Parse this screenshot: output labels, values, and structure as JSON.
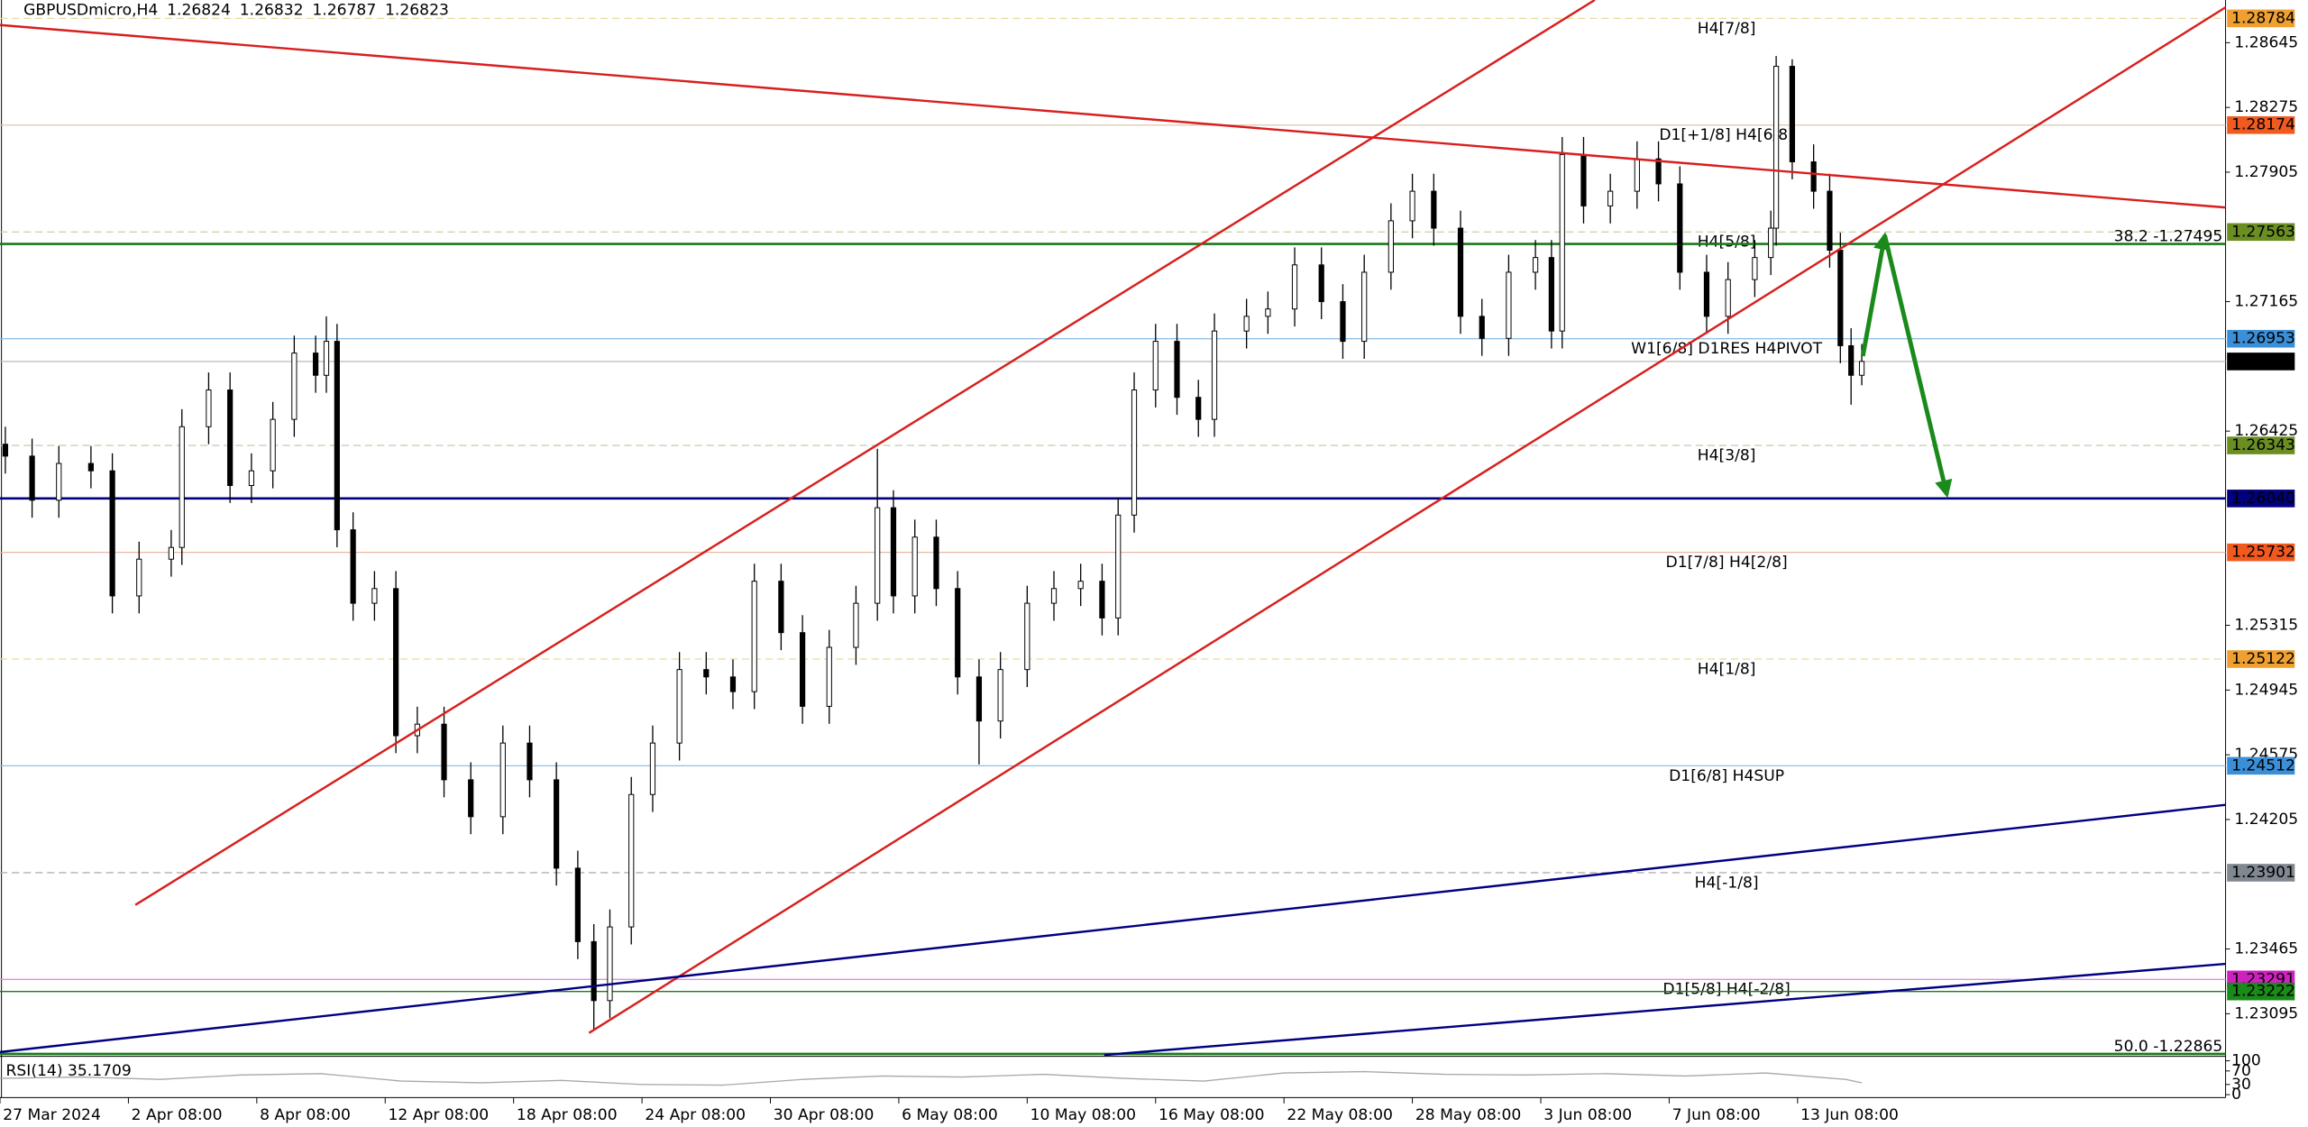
{
  "chart_data": {
    "type": "candlestick",
    "title": "GBPUSDmicro,H4",
    "ohlc_header": [
      1.26824,
      1.26832,
      1.26787,
      1.26823
    ],
    "xlim": [
      0,
      416
    ],
    "ylim": [
      1.22868,
      1.28889
    ],
    "yticks": [
      1.28645,
      1.28275,
      1.27905,
      1.27165,
      1.26425,
      1.25315,
      1.24945,
      1.24575,
      1.24205,
      1.23465,
      1.23095
    ],
    "xticks": [
      {
        "value": 0,
        "label": "27 Mar 2024"
      },
      {
        "value": 24,
        "label": "2 Apr 08:00"
      },
      {
        "value": 48,
        "label": "8 Apr 08:00"
      },
      {
        "value": 72,
        "label": "12 Apr 08:00"
      },
      {
        "value": 96,
        "label": "18 Apr 08:00"
      },
      {
        "value": 120,
        "label": "24 Apr 08:00"
      },
      {
        "value": 144,
        "label": "30 Apr 08:00"
      },
      {
        "value": 168,
        "label": "6 May 08:00"
      },
      {
        "value": 192,
        "label": "10 May 08:00"
      },
      {
        "value": 216,
        "label": "16 May 08:00"
      },
      {
        "value": 240,
        "label": "22 May 08:00"
      },
      {
        "value": 264,
        "label": "28 May 08:00"
      },
      {
        "value": 288,
        "label": "3 Jun 08:00"
      },
      {
        "value": 312,
        "label": "7 Jun 08:00"
      },
      {
        "value": 336,
        "label": "13 Jun 08:00"
      }
    ],
    "x": [
      1,
      6,
      11,
      17,
      21,
      26,
      32,
      34,
      39,
      43,
      47,
      51,
      55,
      59,
      61,
      63,
      66,
      70,
      74,
      78,
      83,
      88,
      94,
      99,
      104,
      108,
      111,
      114,
      118,
      122,
      127,
      132,
      137,
      141,
      146,
      150,
      155,
      160,
      164,
      167,
      171,
      175,
      179,
      183,
      187,
      192,
      197,
      202,
      206,
      209,
      212,
      216,
      220,
      224,
      227,
      233,
      237,
      242,
      247,
      251,
      255,
      260,
      264,
      268,
      273,
      277,
      282,
      287,
      290,
      292,
      296,
      301,
      306,
      310,
      314,
      319,
      323,
      328,
      331,
      332,
      335,
      339,
      342,
      344,
      346,
      348
    ],
    "open": [
      1.2635,
      1.26282,
      1.2603,
      1.2624,
      1.26198,
      1.25483,
      1.25693,
      1.2576,
      1.2645,
      1.2666,
      1.26114,
      1.26198,
      1.26492,
      1.26871,
      1.26744,
      1.26938,
      1.25861,
      1.25441,
      1.25525,
      1.24684,
      1.2475,
      1.24432,
      1.24221,
      1.24642,
      1.24432,
      1.23927,
      1.23507,
      1.2317,
      1.23591,
      1.24348,
      1.24642,
      1.25062,
      1.2502,
      1.24936,
      1.25567,
      1.25273,
      1.24852,
      1.25189,
      1.25441,
      1.25987,
      1.25483,
      1.25819,
      1.25525,
      1.2502,
      1.24768,
      1.25062,
      1.25441,
      1.25525,
      1.25567,
      1.25357,
      1.25945,
      1.2666,
      1.26938,
      1.26618,
      1.26492,
      1.26997,
      1.27081,
      1.27123,
      1.27375,
      1.27165,
      1.26938,
      1.27333,
      1.27627,
      1.27796,
      1.27585,
      1.27081,
      1.26955,
      1.27333,
      1.27417,
      1.26997,
      1.28006,
      1.27712,
      1.27796,
      1.27981,
      1.27838,
      1.27333,
      1.27081,
      1.27291,
      1.27417,
      1.27585,
      1.2851,
      1.27964,
      1.27796,
      1.27459,
      1.26913,
      1.26744
    ],
    "high": [
      1.2645,
      1.26382,
      1.2634,
      1.2634,
      1.26298,
      1.25793,
      1.2586,
      1.2655,
      1.2676,
      1.2676,
      1.26298,
      1.26592,
      1.26971,
      1.26971,
      1.27081,
      1.27038,
      1.25961,
      1.25625,
      1.25625,
      1.2485,
      1.2485,
      1.24532,
      1.24742,
      1.24742,
      1.24532,
      1.24027,
      1.23607,
      1.23691,
      1.24448,
      1.24742,
      1.25162,
      1.25162,
      1.2512,
      1.25667,
      1.25667,
      1.25373,
      1.25289,
      1.25541,
      1.26324,
      1.26087,
      1.25919,
      1.25919,
      1.25625,
      1.2512,
      1.25162,
      1.25541,
      1.25625,
      1.25667,
      1.25667,
      1.26045,
      1.2676,
      1.27038,
      1.27038,
      1.26718,
      1.27097,
      1.27181,
      1.27223,
      1.27475,
      1.27475,
      1.27265,
      1.27433,
      1.27727,
      1.27896,
      1.27896,
      1.27685,
      1.27181,
      1.27433,
      1.27517,
      1.27517,
      1.28106,
      1.28106,
      1.27896,
      1.28081,
      1.28081,
      1.27938,
      1.27433,
      1.27391,
      1.27517,
      1.27685,
      1.28569,
      1.2855,
      1.28064,
      1.27896,
      1.27559,
      1.27013,
      1.26923
    ],
    "low": [
      1.26182,
      1.2593,
      1.2593,
      1.26098,
      1.25383,
      1.25383,
      1.25593,
      1.2566,
      1.2635,
      1.26014,
      1.26014,
      1.26098,
      1.26392,
      1.26644,
      1.26644,
      1.25761,
      1.25341,
      1.25341,
      1.24584,
      1.24584,
      1.24332,
      1.24121,
      1.24121,
      1.24332,
      1.23827,
      1.23407,
      1.23002,
      1.2307,
      1.23491,
      1.24248,
      1.24542,
      1.2492,
      1.24836,
      1.24836,
      1.25173,
      1.24752,
      1.24752,
      1.25089,
      1.25341,
      1.25383,
      1.25383,
      1.25425,
      1.2492,
      1.2452,
      1.24668,
      1.24962,
      1.25341,
      1.25425,
      1.25257,
      1.25257,
      1.25845,
      1.2656,
      1.26518,
      1.26392,
      1.26392,
      1.26897,
      1.26981,
      1.27023,
      1.27065,
      1.26838,
      1.26838,
      1.27233,
      1.27527,
      1.27485,
      1.26981,
      1.26855,
      1.26855,
      1.27233,
      1.26897,
      1.26897,
      1.27612,
      1.27612,
      1.27696,
      1.27738,
      1.27233,
      1.26981,
      1.26981,
      1.27191,
      1.27317,
      1.27485,
      1.27864,
      1.27696,
      1.27359,
      1.26813,
      1.26576,
      1.26687
    ],
    "close": [
      1.26282,
      1.2603,
      1.2624,
      1.26198,
      1.25483,
      1.25693,
      1.2576,
      1.2645,
      1.2666,
      1.26114,
      1.26198,
      1.26492,
      1.26871,
      1.26744,
      1.26938,
      1.25861,
      1.25441,
      1.25525,
      1.24684,
      1.2475,
      1.24432,
      1.24221,
      1.24642,
      1.24432,
      1.23927,
      1.23507,
      1.2317,
      1.23591,
      1.24348,
      1.24642,
      1.25062,
      1.2502,
      1.24936,
      1.25567,
      1.25273,
      1.24852,
      1.25189,
      1.25441,
      1.25987,
      1.25483,
      1.25819,
      1.25525,
      1.2502,
      1.24768,
      1.25062,
      1.25441,
      1.25525,
      1.25567,
      1.25357,
      1.25945,
      1.2666,
      1.26938,
      1.26618,
      1.26492,
      1.26997,
      1.27081,
      1.27123,
      1.27375,
      1.27165,
      1.26938,
      1.27333,
      1.27627,
      1.27796,
      1.27585,
      1.27081,
      1.26955,
      1.27333,
      1.27417,
      1.26997,
      1.28006,
      1.27712,
      1.27796,
      1.27981,
      1.27838,
      1.27333,
      1.27081,
      1.27291,
      1.27417,
      1.27585,
      1.2851,
      1.27964,
      1.27796,
      1.27459,
      1.26913,
      1.26744,
      1.26823
    ],
    "levels": [
      {
        "price": 1.28784,
        "label": "H4[7/8]",
        "color": "#f0a030",
        "line_color": "#e6dc9c",
        "dashed": true
      },
      {
        "price": 1.28174,
        "label": "D1[+1/8] H4[6/8]",
        "color": "#f05a1e",
        "line_color": "#d8c8b0",
        "dashed": false
      },
      {
        "price": 1.27563,
        "label": "H4[5/8]",
        "color": "#6b8e23",
        "line_color": "#c8d8a8",
        "dashed": true
      },
      {
        "price": 1.26953,
        "label": "W1[6/8] D1RES H4PIVOT",
        "color": "#3a8fd8",
        "line_color": "#90c0e8",
        "dashed": false
      },
      {
        "price": 1.26823,
        "color": "#000000",
        "line_color": "#c0c0c0",
        "dashed": false
      },
      {
        "price": 1.26343,
        "label": "H4[3/8]",
        "color": "#6b8e23",
        "line_color": "#c8d0b0",
        "dashed": true
      },
      {
        "price": {
          "value": 1.2604,
          "label": "1.26040"
        },
        "color": "#000080",
        "line_color": "#000080",
        "dashed": false
      },
      {
        "price": 1.25732,
        "label": "D1[7/8] H4[2/8]",
        "color": "#f05a1e",
        "line_color": "#e8b8a0",
        "dashed": false
      },
      {
        "price": 1.25122,
        "label": "H4[1/8]",
        "color": "#f0a030",
        "line_color": "#e6dc9c",
        "dashed": true
      },
      {
        "price": 1.24512,
        "label": "D1[6/8] H4SUP",
        "color": "#3a8fd8",
        "line_color": "#90c0e8",
        "dashed": false
      },
      {
        "price": 1.23901,
        "label": "H4[-1/8]",
        "color": "#808890",
        "line_color": "#b0b0b0",
        "dashed": true
      },
      {
        "price": 1.23291,
        "label": "D1[5/8] H4[-2/8]",
        "color": "#d020c0",
        "line_color": "#e090e0",
        "dashed": false
      },
      {
        "price": 1.23222,
        "color": "#1a8a1a",
        "line_color": "#1a7a1a",
        "dashed": false
      }
    ],
    "fibs": [
      {
        "value": 1.27495,
        "label": "38.2 -1.27495",
        "color": "#1a7a1a"
      },
      {
        "value": 1.22865,
        "label": "50.0 -1.22865",
        "color": "#1a7a1a"
      }
    ],
    "trendlines": [
      {
        "color": "#d81e1e",
        "points": [
          [
            0,
            1.28746
          ],
          [
            416,
            1.27703
          ]
        ]
      },
      {
        "color": "#d81e1e",
        "points": [
          [
            25.3,
            1.23717
          ],
          [
            298.1,
            1.28889
          ]
        ]
      },
      {
        "color": "#d81e1e",
        "points": [
          [
            110.1,
            1.22985
          ],
          [
            416,
            1.28847
          ]
        ]
      },
      {
        "color": "#000080",
        "points": [
          [
            0,
            1.22876
          ],
          [
            416,
            1.24289
          ]
        ]
      },
      {
        "color": "#000080",
        "points": [
          [
            206.4,
            1.22859
          ],
          [
            416,
            1.2338
          ]
        ]
      }
    ],
    "arrows": [
      {
        "color": "#1a8a1a",
        "points": [
          [
            348.2,
            1.26854
          ],
          [
            352.3,
            1.27543
          ]
        ]
      },
      {
        "color": "#1a8a1a",
        "points": [
          [
            352.3,
            1.27543
          ],
          [
            363.9,
            1.26063
          ]
        ]
      }
    ],
    "rsi": {
      "label": "RSI(14) 35.1709",
      "ylim": [
        0,
        100
      ],
      "yticks": [
        0,
        30,
        70,
        100
      ],
      "color": "#a8a8a8",
      "x": [
        0,
        15,
        30,
        45,
        60,
        75,
        90,
        105,
        120,
        135,
        150,
        165,
        180,
        195,
        210,
        225,
        240,
        255,
        270,
        285,
        300,
        315,
        330,
        345,
        348
      ],
      "values": [
        48,
        52,
        45,
        58,
        62,
        40,
        35,
        42,
        30,
        28,
        45,
        55,
        52,
        60,
        48,
        40,
        64,
        68,
        60,
        58,
        62,
        55,
        64,
        45,
        35
      ]
    }
  }
}
